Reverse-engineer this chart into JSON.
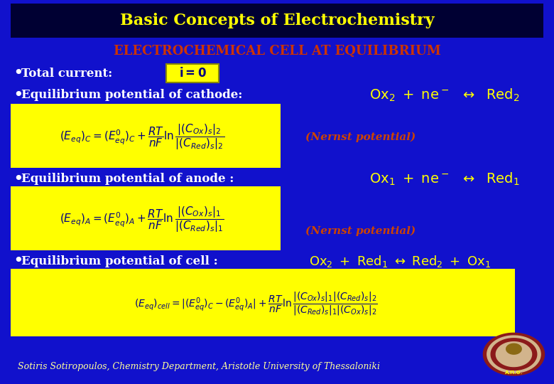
{
  "title": "Basic Concepts of Electrochemistry",
  "title_color": "#FFFF00",
  "title_bg": "#000033",
  "bg_color": "#1111CC",
  "subtitle": "ELECTROCHEMICAL CELL AT EQUILIBRIUM",
  "subtitle_color": "#CC3300",
  "footer": "Sotiris Sotiropoulos, Chemistry Department, Aristotle University of Thessaloniki",
  "footer_color": "#FFFF99",
  "bullet_color": "#FFFFFF",
  "yellow_box": "#FFFF00",
  "equation_color": "#000080",
  "reaction_color": "#FFFF00",
  "nernst_color": "#CC4400"
}
